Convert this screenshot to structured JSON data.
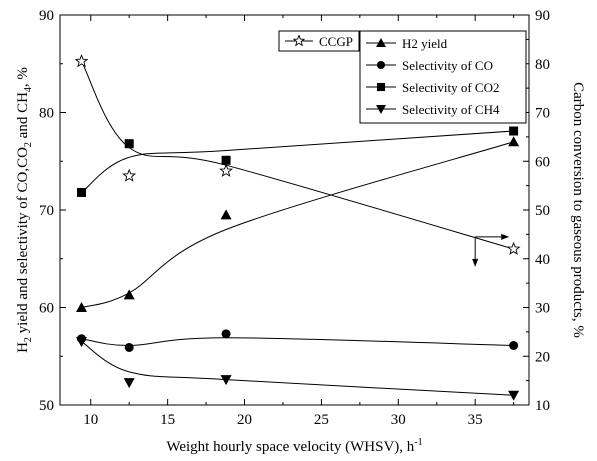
{
  "chart_data": {
    "type": "line",
    "xlabel": "Weight hourly space velocity (WHSV), h",
    "xlabel_sup": "-1",
    "ylabel_left_parts": [
      {
        "t": "H",
        "s": "normal"
      },
      {
        "t": "2",
        "s": "sub"
      },
      {
        "t": " yield and selectivity of CO,CO",
        "s": "normal"
      },
      {
        "t": "2",
        "s": "sub"
      },
      {
        "t": " and CH",
        "s": "normal"
      },
      {
        "t": "4",
        "s": "sub"
      },
      {
        "t": ", %",
        "s": "normal"
      }
    ],
    "ylabel_right": "Carbon conversion to gaseous products, %",
    "xlim": [
      8,
      38.5
    ],
    "ylim_left": [
      50,
      90
    ],
    "ylim_right": [
      10,
      90
    ],
    "x_ticks": [
      10,
      15,
      20,
      25,
      30,
      35
    ],
    "y_ticks_left": [
      50,
      60,
      70,
      80,
      90
    ],
    "y_ticks_right": [
      10,
      20,
      30,
      40,
      50,
      60,
      70,
      80,
      90
    ],
    "legend_right_axis": [
      "CCGP"
    ],
    "legend_left_axis": [
      "H2 yield",
      "Selectivity of CO",
      "Selectivity of CO2",
      "Selectivity of CH4"
    ],
    "series": [
      {
        "name": "CCGP",
        "axis": "right",
        "marker": "star",
        "x": [
          9.4,
          12.5,
          18.8,
          37.5
        ],
        "y": [
          80.5,
          57,
          58,
          42
        ],
        "curve_y": [
          80.5,
          62.8,
          59.2,
          42
        ]
      },
      {
        "name": "H2 yield",
        "axis": "left",
        "marker": "triangle-up",
        "x": [
          9.4,
          12.5,
          18.8,
          37.5
        ],
        "y": [
          60,
          61.3,
          69.5,
          77
        ],
        "curve_y": [
          60,
          61.5,
          68,
          77
        ]
      },
      {
        "name": "Selectivity of CO",
        "axis": "left",
        "marker": "circle",
        "x": [
          9.4,
          12.5,
          18.8,
          37.5
        ],
        "y": [
          56.8,
          55.9,
          57.3,
          56.1
        ],
        "curve_y": [
          56.8,
          56.1,
          56.9,
          56.1
        ]
      },
      {
        "name": "Selectivity of CO2",
        "axis": "left",
        "marker": "square",
        "x": [
          9.4,
          12.5,
          18.8,
          37.5
        ],
        "y": [
          71.8,
          76.8,
          75.1,
          78.1
        ],
        "curve_y": [
          71.8,
          75.4,
          76.1,
          78.1
        ]
      },
      {
        "name": "Selectivity of CH4",
        "axis": "left",
        "marker": "triangle-down",
        "x": [
          9.4,
          12.5,
          18.8,
          37.5
        ],
        "y": [
          56.5,
          52.3,
          52.6,
          51
        ],
        "curve_y": [
          56.5,
          53.4,
          52.6,
          51
        ]
      }
    ]
  }
}
